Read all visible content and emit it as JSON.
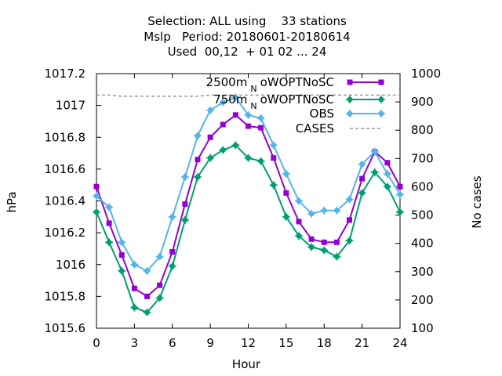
{
  "chart_data": {
    "type": "line",
    "title": {
      "line1": "Selection: ALL using    33 stations",
      "line2": "Mslp   Period: 20180601-20180614",
      "line3": "Used  00,12  + 01 02 ... 24"
    },
    "xlabel": "Hour",
    "ylabel": "hPa",
    "y2label": "No cases",
    "xlim": [
      0,
      24
    ],
    "ylim": [
      1015.6,
      1017.2
    ],
    "y2lim": [
      100,
      1000
    ],
    "x_ticks": [
      0,
      3,
      6,
      9,
      12,
      15,
      18,
      21,
      24
    ],
    "y_ticks": [
      1015.6,
      1015.8,
      1016,
      1016.2,
      1016.4,
      1016.6,
      1016.8,
      1017,
      1017.2
    ],
    "y_tick_labels": [
      "1015.6",
      "1015.8",
      "1016",
      "1016.2",
      "1016.4",
      "1016.6",
      "1016.8",
      "1017",
      "1017.2"
    ],
    "y2_ticks": [
      100,
      200,
      300,
      400,
      500,
      600,
      700,
      800,
      900,
      1000
    ],
    "grid": false,
    "legend_position": "top-right",
    "x": [
      0,
      1,
      2,
      3,
      4,
      5,
      6,
      7,
      8,
      9,
      10,
      11,
      12,
      13,
      14,
      15,
      16,
      17,
      18,
      19,
      20,
      21,
      22,
      23,
      24
    ],
    "series": [
      {
        "name": "2500m_N_oWOPTNoSC",
        "legend_label": "2500m",
        "legend_sub": "N",
        "legend_suffix": "oWOPTNoSC",
        "color": "#9400d3",
        "marker": "square",
        "axis": "left",
        "values": [
          1016.49,
          1016.26,
          1016.06,
          1015.85,
          1015.8,
          1015.87,
          1016.08,
          1016.38,
          1016.66,
          1016.8,
          1016.88,
          1016.94,
          1016.87,
          1016.86,
          1016.67,
          1016.45,
          1016.27,
          1016.16,
          1016.14,
          1016.14,
          1016.28,
          1016.54,
          1016.71,
          1016.64,
          1016.49
        ]
      },
      {
        "name": "750m_N_oWOPTNoSC",
        "legend_label": "750m",
        "legend_sub": "N",
        "legend_suffix": "oWOPTNoSC",
        "color": "#009e73",
        "marker": "star",
        "axis": "left",
        "values": [
          1016.33,
          1016.14,
          1015.96,
          1015.73,
          1015.7,
          1015.79,
          1015.99,
          1016.28,
          1016.55,
          1016.67,
          1016.72,
          1016.75,
          1016.67,
          1016.65,
          1016.5,
          1016.3,
          1016.18,
          1016.11,
          1016.09,
          1016.05,
          1016.15,
          1016.45,
          1016.58,
          1016.49,
          1016.33
        ]
      },
      {
        "name": "OBS",
        "legend_label": "OBS",
        "color": "#56b4e9",
        "marker": "star",
        "axis": "left",
        "values": [
          1016.43,
          1016.36,
          1016.14,
          1016.0,
          1015.96,
          1016.05,
          1016.3,
          1016.55,
          1016.81,
          1016.97,
          1017.02,
          1017.05,
          1016.94,
          1016.92,
          1016.75,
          1016.57,
          1016.4,
          1016.32,
          1016.34,
          1016.34,
          1016.41,
          1016.63,
          1016.71,
          1016.57,
          1016.44
        ]
      },
      {
        "name": "CASES",
        "legend_label": "CASES",
        "color": "#999999",
        "marker": "none",
        "dashed": true,
        "axis": "right",
        "values": [
          924,
          924,
          920,
          920,
          920,
          920,
          920,
          920,
          920,
          924,
          924,
          924,
          924,
          924,
          924,
          924,
          924,
          924,
          924,
          924,
          924,
          924,
          924,
          924,
          924
        ]
      }
    ]
  }
}
